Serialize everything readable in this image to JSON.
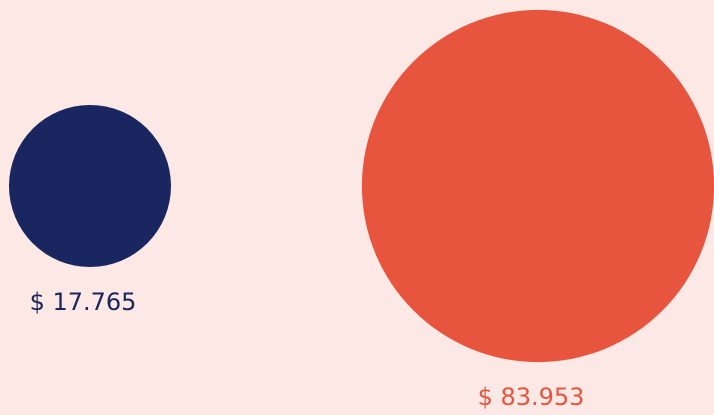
{
  "chart_data": {
    "type": "bubble",
    "values": [
      17.765,
      83.953
    ],
    "value_labels": [
      "$ 17.765",
      "$ 83.953"
    ],
    "colors": [
      "#1a2660",
      "#e8553f"
    ]
  }
}
